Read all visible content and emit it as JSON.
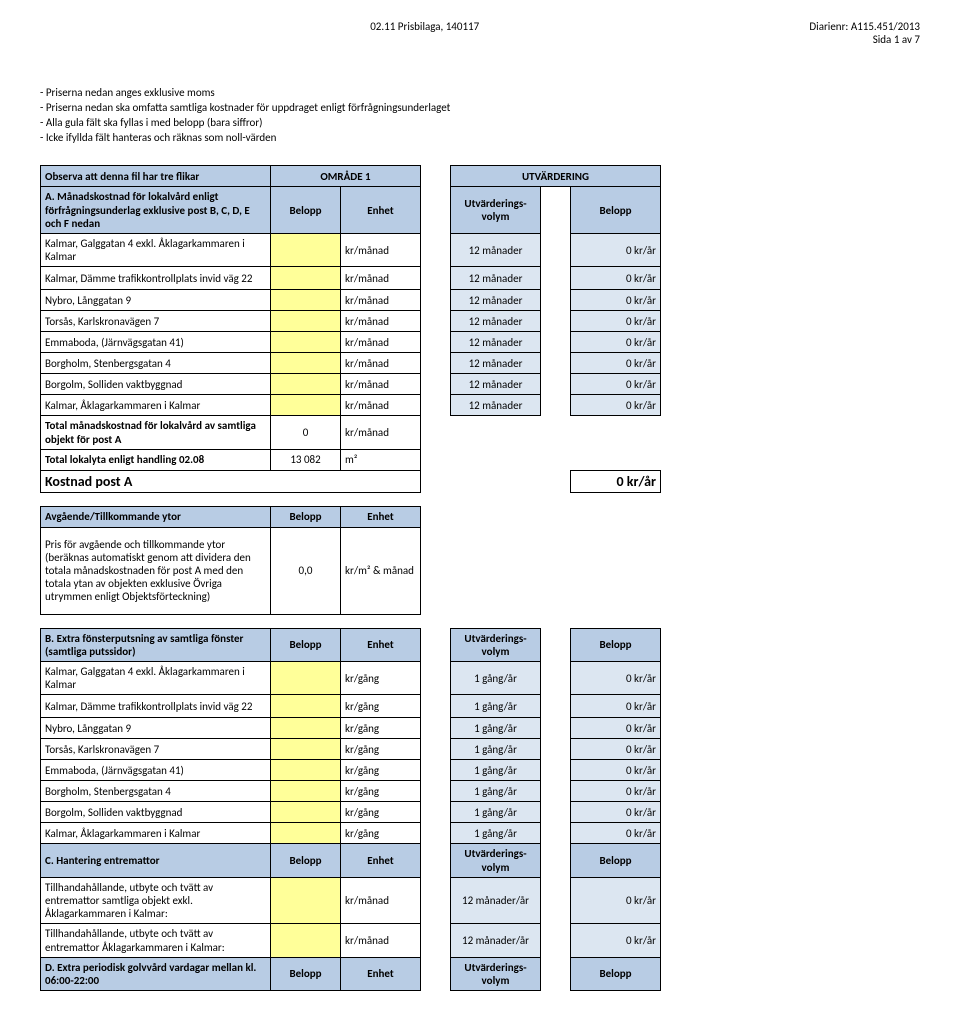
{
  "header": {
    "left": "02.11 Prisbilaga, 140117",
    "right_top": "Diarienr: A115.451/2013",
    "right_sub": "Sida 1 av 7"
  },
  "notes": [
    "- Priserna nedan anges exklusive moms",
    "- Priserna nedan ska omfatta samtliga kostnader för uppdraget enligt förfrågningsunderlaget",
    "- Alla gula fält ska fyllas i med belopp (bara siffror)",
    "- Icke ifyllda fält hanteras och räknas som noll-värden"
  ],
  "observa_row": {
    "label": "Observa att denna fil har tre flikar",
    "mid": "OMRÅDE 1",
    "right": "UTVÄRDERING"
  },
  "sectionA": {
    "title": "A. Månadskostnad för lokalvård enligt förfrågningsunderlag exklusive post B, C, D, E och F nedan",
    "belopp_hdr": "Belopp",
    "enhet_hdr": "Enhet",
    "vol_hdr": "Utvärderings-\nvolym",
    "belopp2_hdr": "Belopp",
    "rows": [
      {
        "desc": "Kalmar, Galggatan 4 exkl. Åklagarkammaren i Kalmar",
        "unit": "kr/månad",
        "vol": "12 månader",
        "val": "0 kr/år"
      },
      {
        "desc": "Kalmar, Dämme trafikkontrollplats invid väg 22",
        "unit": "kr/månad",
        "vol": "12 månader",
        "val": "0 kr/år"
      },
      {
        "desc": "Nybro, Långgatan 9",
        "unit": "kr/månad",
        "vol": "12 månader",
        "val": "0 kr/år"
      },
      {
        "desc": "Torsås, Karlskronavägen 7",
        "unit": "kr/månad",
        "vol": "12 månader",
        "val": "0 kr/år"
      },
      {
        "desc": "Emmaboda, (Järnvägsgatan 41)",
        "unit": "kr/månad",
        "vol": "12 månader",
        "val": "0 kr/år"
      },
      {
        "desc": "Borgholm, Stenbergsgatan 4",
        "unit": "kr/månad",
        "vol": "12 månader",
        "val": "0 kr/år"
      },
      {
        "desc": "Borgolm, Solliden vaktbyggnad",
        "unit": "kr/månad",
        "vol": "12 månader",
        "val": "0 kr/år"
      },
      {
        "desc": "Kalmar, Åklagarkammaren i Kalmar",
        "unit": "kr/månad",
        "vol": "12 månader",
        "val": "0 kr/år"
      }
    ],
    "total1": {
      "label": "Total månadskostnad för lokalvård av samtliga objekt för post A",
      "val": "0",
      "unit": "kr/månad"
    },
    "total2": {
      "label": "Total lokalyta enligt handling 02.08",
      "val": "13 082",
      "unit": "m²"
    },
    "kostnad": {
      "label": "Kostnad post A",
      "val": "0 kr/år"
    }
  },
  "avg": {
    "title": "Avgående/Tillkommande ytor",
    "belopp": "Belopp",
    "enhet": "Enhet",
    "desc": "Pris för avgående och tillkommande ytor (beräknas automatiskt genom att dividera den totala månadskostnaden för post A med den totala ytan av objekten exklusive Övriga utrymmen enligt Objektsförteckning)",
    "val": "0,0",
    "unit": "kr/m² & månad"
  },
  "sectionB": {
    "title": "B. Extra fönsterputsning av samtliga fönster (samtliga putssidor)",
    "belopp": "Belopp",
    "enhet": "Enhet",
    "vol_hdr": "Utvärderings-\nvolym",
    "belopp2": "Belopp",
    "rows": [
      {
        "desc": "Kalmar, Galggatan 4 exkl. Åklagarkammaren i Kalmar",
        "unit": "kr/gång",
        "vol": "1 gång/år",
        "val": "0 kr/år"
      },
      {
        "desc": "Kalmar, Dämme trafikkontrollplats invid väg 22",
        "unit": "kr/gång",
        "vol": "1 gång/år",
        "val": "0 kr/år"
      },
      {
        "desc": "Nybro, Långgatan 9",
        "unit": "kr/gång",
        "vol": "1 gång/år",
        "val": "0 kr/år"
      },
      {
        "desc": "Torsås, Karlskronavägen 7",
        "unit": "kr/gång",
        "vol": "1 gång/år",
        "val": "0 kr/år"
      },
      {
        "desc": "Emmaboda, (Järnvägsgatan 41)",
        "unit": "kr/gång",
        "vol": "1 gång/år",
        "val": "0 kr/år"
      },
      {
        "desc": "Borgholm, Stenbergsgatan 4",
        "unit": "kr/gång",
        "vol": "1 gång/år",
        "val": "0 kr/år"
      },
      {
        "desc": "Borgolm, Solliden vaktbyggnad",
        "unit": "kr/gång",
        "vol": "1 gång/år",
        "val": "0 kr/år"
      },
      {
        "desc": "Kalmar, Åklagarkammaren i Kalmar",
        "unit": "kr/gång",
        "vol": "1 gång/år",
        "val": "0 kr/år"
      }
    ]
  },
  "sectionC": {
    "title": "C. Hantering entremattor",
    "belopp": "Belopp",
    "enhet": "Enhet",
    "vol_hdr": "Utvärderings-\nvolym",
    "belopp2": "Belopp",
    "rows": [
      {
        "desc": "Tillhandahållande, utbyte och tvätt av entremattor samtliga objekt exkl. Åklagarkammaren i Kalmar:",
        "unit": "kr/månad",
        "vol": "12 månader/år",
        "val": "0 kr/år"
      },
      {
        "desc": "Tillhandahållande, utbyte och tvätt av entremattor Åklagarkammaren i Kalmar:",
        "unit": "kr/månad",
        "vol": "12 månader/år",
        "val": "0 kr/år"
      }
    ]
  },
  "sectionD": {
    "title": "D. Extra periodisk golvvård vardagar mellan kl. 06:00-22:00",
    "belopp": "Belopp",
    "enhet": "Enhet",
    "vol_hdr": "Utvärderings-\nvolym",
    "belopp2": "Belopp"
  },
  "colors": {
    "header_blue": "#b8cce4",
    "light_blue": "#dce6f1",
    "yellow": "#ffff99"
  }
}
